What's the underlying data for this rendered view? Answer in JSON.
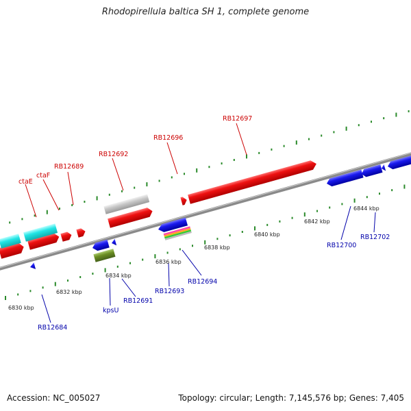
{
  "header": {
    "title": "Rhodopirellula baltica SH 1, complete genome"
  },
  "footer": {
    "accession": "Accession: NC_005027",
    "summary": "Topology: circular; Length: 7,145,576 bp; Genes: 7,405"
  },
  "colors": {
    "forward_gene": "#ee1111",
    "reverse_gene": "#1a1aee",
    "rna_cyan": "#22e5e5",
    "gray_feature": "#c8c8c8",
    "olive_feature": "#6b8e23",
    "tick_green": "#2a8a2a",
    "backbone": "#8a8a8a"
  },
  "scale_labels": [
    "6830 kbp",
    "6832 kbp",
    "6834 kbp",
    "6836 kbp",
    "6838 kbp",
    "6840 kbp",
    "6842 kbp",
    "6844 kbp"
  ],
  "gene_labels_forward": [
    "ctaE",
    "ctaF",
    "RB12689",
    "RB12692",
    "RB12696",
    "RB12697"
  ],
  "gene_labels_reverse": [
    "RB12684",
    "kpsU",
    "RB12691",
    "RB12693",
    "RB12694",
    "RB12700",
    "RB12702"
  ]
}
